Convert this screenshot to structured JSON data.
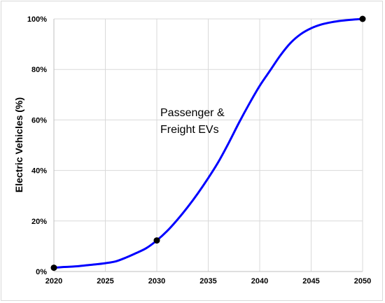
{
  "chart_data": {
    "type": "line",
    "title": "",
    "xlabel": "",
    "ylabel": "Electric Vehicles (%)",
    "xlim": [
      2020,
      2050
    ],
    "ylim": [
      0,
      100
    ],
    "x_ticks": [
      2020,
      2025,
      2030,
      2035,
      2040,
      2045,
      2050
    ],
    "x_tick_labels": [
      "2020",
      "2025",
      "2030",
      "2035",
      "2040",
      "2045",
      "2050"
    ],
    "y_ticks": [
      0,
      20,
      40,
      60,
      80,
      100
    ],
    "y_tick_labels": [
      "0%",
      "20%",
      "40%",
      "60%",
      "80%",
      "100%"
    ],
    "grid": true,
    "line_color": "#0000ff",
    "marker_color": "#000000",
    "annotation": [
      "Passenger &",
      "Freight EVs"
    ],
    "series": [
      {
        "x": [
          2020,
          2021,
          2022,
          2023,
          2024,
          2025,
          2026,
          2027,
          2028,
          2029,
          2030,
          2031,
          2032,
          2033,
          2034,
          2035,
          2036,
          2037,
          2038,
          2039,
          2040,
          2041,
          2042,
          2043,
          2044,
          2045,
          2046,
          2047,
          2048,
          2049,
          2050
        ],
        "y": [
          1.5,
          1.8,
          2.0,
          2.4,
          2.8,
          3.3,
          4.0,
          5.5,
          7.3,
          9.3,
          12.3,
          16.0,
          20.5,
          25.5,
          31.0,
          37.0,
          43.5,
          51.0,
          59.0,
          66.5,
          73.5,
          79.5,
          85.5,
          90.5,
          94.0,
          96.3,
          97.8,
          98.7,
          99.3,
          99.7,
          100
        ]
      }
    ],
    "markers": [
      {
        "x": 2020,
        "y": 1.5
      },
      {
        "x": 2030,
        "y": 12.3
      },
      {
        "x": 2050,
        "y": 100
      }
    ]
  }
}
